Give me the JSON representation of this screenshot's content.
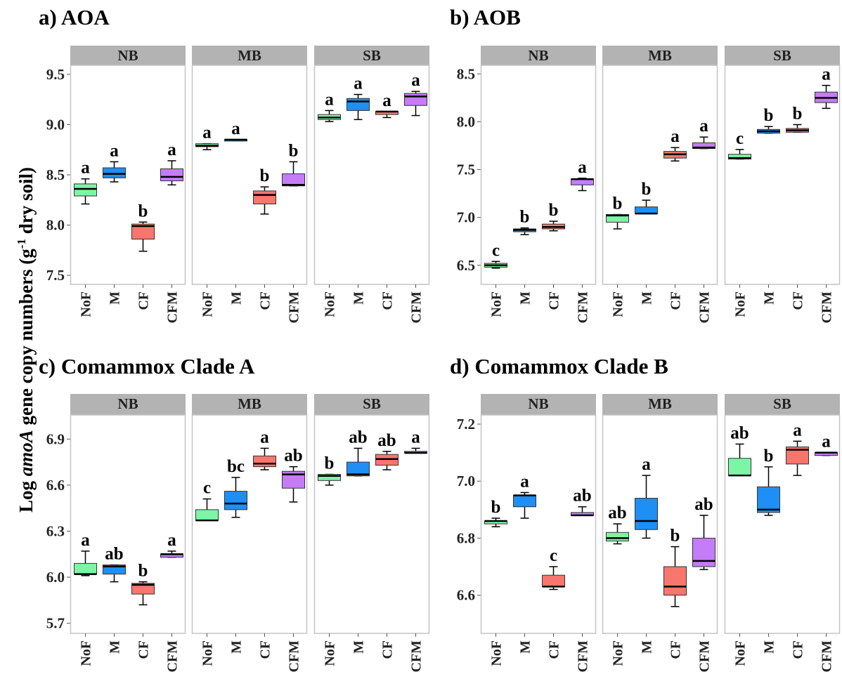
{
  "colors": {
    "NoF": "#7cf5a6",
    "M": "#1e8ff5",
    "CF": "#f8766d",
    "CFM": "#c47cf8",
    "strip": "#b3b3b3",
    "panel_border": "#c4c4c4"
  },
  "y_axis_label": {
    "pre": "Log ",
    "italic": "amoA",
    "mid": " gene copy numbers (g",
    "sup": "-1",
    "post": " dry soil)"
  },
  "chart_data": [
    {
      "type": "boxplot",
      "title": "a) AOA",
      "ylim": [
        7.41,
        9.59
      ],
      "yticks": [
        "7.5",
        "8.0",
        "8.5",
        "9.0",
        "9.5"
      ],
      "categories": [
        "NoF",
        "M",
        "CF",
        "CFM"
      ],
      "facets": [
        {
          "name": "NB",
          "boxes": [
            {
              "category": "NoF",
              "min": 8.21,
              "q1": 8.29,
              "median": 8.36,
              "q3": 8.41,
              "max": 8.46,
              "letter": "a"
            },
            {
              "category": "M",
              "min": 8.43,
              "q1": 8.47,
              "median": 8.51,
              "q3": 8.57,
              "max": 8.63,
              "letter": "a"
            },
            {
              "category": "CF",
              "min": 7.74,
              "q1": 7.86,
              "median": 7.99,
              "q3": 8.01,
              "max": 8.03,
              "letter": "b"
            },
            {
              "category": "CFM",
              "min": 8.4,
              "q1": 8.44,
              "median": 8.48,
              "q3": 8.56,
              "max": 8.64,
              "letter": "a"
            }
          ]
        },
        {
          "name": "MB",
          "boxes": [
            {
              "category": "NoF",
              "min": 8.75,
              "q1": 8.78,
              "median": 8.79,
              "q3": 8.81,
              "max": 8.81,
              "letter": "a"
            },
            {
              "category": "M",
              "min": 8.84,
              "q1": 8.84,
              "median": 8.85,
              "q3": 8.85,
              "max": 8.85,
              "letter": "a"
            },
            {
              "category": "CF",
              "min": 8.11,
              "q1": 8.21,
              "median": 8.3,
              "q3": 8.34,
              "max": 8.38,
              "letter": "b"
            },
            {
              "category": "CFM",
              "min": 8.39,
              "q1": 8.39,
              "median": 8.4,
              "q3": 8.51,
              "max": 8.63,
              "letter": "b"
            }
          ]
        },
        {
          "name": "SB",
          "boxes": [
            {
              "category": "NoF",
              "min": 9.03,
              "q1": 9.05,
              "median": 9.07,
              "q3": 9.1,
              "max": 9.14,
              "letter": "a"
            },
            {
              "category": "M",
              "min": 9.05,
              "q1": 9.14,
              "median": 9.23,
              "q3": 9.26,
              "max": 9.3,
              "letter": "a"
            },
            {
              "category": "CF",
              "min": 9.07,
              "q1": 9.1,
              "median": 9.13,
              "q3": 9.13,
              "max": 9.13,
              "letter": "a"
            },
            {
              "category": "CFM",
              "min": 9.09,
              "q1": 9.19,
              "median": 9.28,
              "q3": 9.31,
              "max": 9.33,
              "letter": "a"
            }
          ]
        }
      ]
    },
    {
      "type": "boxplot",
      "title": "b) AOB",
      "ylim": [
        6.3,
        8.59
      ],
      "yticks": [
        "6.5",
        "7.0",
        "7.5",
        "8.0",
        "8.5"
      ],
      "categories": [
        "NoF",
        "M",
        "CF",
        "CFM"
      ],
      "facets": [
        {
          "name": "NB",
          "boxes": [
            {
              "category": "NoF",
              "min": 6.47,
              "q1": 6.48,
              "median": 6.5,
              "q3": 6.52,
              "max": 6.54,
              "letter": "c"
            },
            {
              "category": "M",
              "min": 6.82,
              "q1": 6.85,
              "median": 6.87,
              "q3": 6.88,
              "max": 6.89,
              "letter": "b"
            },
            {
              "category": "CF",
              "min": 6.86,
              "q1": 6.88,
              "median": 6.9,
              "q3": 6.93,
              "max": 6.96,
              "letter": "b"
            },
            {
              "category": "CFM",
              "min": 7.28,
              "q1": 7.34,
              "median": 7.4,
              "q3": 7.4,
              "max": 7.41,
              "letter": "a"
            }
          ]
        },
        {
          "name": "MB",
          "boxes": [
            {
              "category": "NoF",
              "min": 6.88,
              "q1": 6.95,
              "median": 7.02,
              "q3": 7.03,
              "max": 7.03,
              "letter": "b"
            },
            {
              "category": "M",
              "min": 7.04,
              "q1": 7.04,
              "median": 7.04,
              "q3": 7.11,
              "max": 7.18,
              "letter": "b"
            },
            {
              "category": "CF",
              "min": 7.59,
              "q1": 7.62,
              "median": 7.66,
              "q3": 7.69,
              "max": 7.73,
              "letter": "a"
            },
            {
              "category": "CFM",
              "min": 7.72,
              "q1": 7.72,
              "median": 7.73,
              "q3": 7.78,
              "max": 7.84,
              "letter": "a"
            }
          ]
        },
        {
          "name": "SB",
          "boxes": [
            {
              "category": "NoF",
              "min": 7.61,
              "q1": 7.61,
              "median": 7.62,
              "q3": 7.66,
              "max": 7.71,
              "letter": "c"
            },
            {
              "category": "M",
              "min": 7.88,
              "q1": 7.88,
              "median": 7.9,
              "q3": 7.92,
              "max": 7.95,
              "letter": "b"
            },
            {
              "category": "CF",
              "min": 7.89,
              "q1": 7.89,
              "median": 7.91,
              "q3": 7.93,
              "max": 7.97,
              "letter": "b"
            },
            {
              "category": "CFM",
              "min": 8.14,
              "q1": 8.2,
              "median": 8.25,
              "q3": 8.31,
              "max": 8.38,
              "letter": "a"
            }
          ]
        }
      ]
    },
    {
      "type": "boxplot",
      "title": "c) Comammox Clade A",
      "ylim": [
        5.634,
        7.057
      ],
      "yticks": [
        "5.7",
        "6.0",
        "6.3",
        "6.6",
        "6.9"
      ],
      "categories": [
        "NoF",
        "M",
        "CF",
        "CFM"
      ],
      "facets": [
        {
          "name": "NB",
          "boxes": [
            {
              "category": "NoF",
              "min": 6.01,
              "q1": 6.02,
              "median": 6.02,
              "q3": 6.09,
              "max": 6.17,
              "letter": "a"
            },
            {
              "category": "M",
              "min": 5.97,
              "q1": 6.02,
              "median": 6.07,
              "q3": 6.08,
              "max": 6.08,
              "letter": "ab"
            },
            {
              "category": "CF",
              "min": 5.82,
              "q1": 5.89,
              "median": 5.95,
              "q3": 5.96,
              "max": 5.97,
              "letter": "b"
            },
            {
              "category": "CFM",
              "min": 6.13,
              "q1": 6.13,
              "median": 6.15,
              "q3": 6.15,
              "max": 6.17,
              "letter": "a"
            }
          ]
        },
        {
          "name": "MB",
          "boxes": [
            {
              "category": "NoF",
              "min": 6.37,
              "q1": 6.37,
              "median": 6.37,
              "q3": 6.44,
              "max": 6.51,
              "letter": "c"
            },
            {
              "category": "M",
              "min": 6.39,
              "q1": 6.44,
              "median": 6.48,
              "q3": 6.56,
              "max": 6.65,
              "letter": "bc"
            },
            {
              "category": "CF",
              "min": 6.7,
              "q1": 6.72,
              "median": 6.74,
              "q3": 6.79,
              "max": 6.84,
              "letter": "a"
            },
            {
              "category": "CFM",
              "min": 6.49,
              "q1": 6.58,
              "median": 6.67,
              "q3": 6.69,
              "max": 6.72,
              "letter": "ab"
            }
          ]
        },
        {
          "name": "SB",
          "boxes": [
            {
              "category": "NoF",
              "min": 6.6,
              "q1": 6.63,
              "median": 6.66,
              "q3": 6.67,
              "max": 6.67,
              "letter": "b"
            },
            {
              "category": "M",
              "min": 6.66,
              "q1": 6.66,
              "median": 6.67,
              "q3": 6.75,
              "max": 6.84,
              "letter": "ab"
            },
            {
              "category": "CF",
              "min": 6.7,
              "q1": 6.73,
              "median": 6.77,
              "q3": 6.8,
              "max": 6.82,
              "letter": "ab"
            },
            {
              "category": "CFM",
              "min": 6.81,
              "q1": 6.81,
              "median": 6.81,
              "q3": 6.82,
              "max": 6.84,
              "letter": "a"
            }
          ]
        }
      ]
    },
    {
      "type": "boxplot",
      "title": "d) Comammox Clade B",
      "ylim": [
        6.466,
        7.232
      ],
      "yticks": [
        "6.6",
        "6.8",
        "7.0",
        "7.2"
      ],
      "categories": [
        "NoF",
        "M",
        "CF",
        "CFM"
      ],
      "facets": [
        {
          "name": "NB",
          "boxes": [
            {
              "category": "NoF",
              "min": 6.84,
              "q1": 6.85,
              "median": 6.86,
              "q3": 6.86,
              "max": 6.87,
              "letter": "b"
            },
            {
              "category": "M",
              "min": 6.87,
              "q1": 6.91,
              "median": 6.95,
              "q3": 6.95,
              "max": 6.96,
              "letter": "a"
            },
            {
              "category": "CF",
              "min": 6.62,
              "q1": 6.63,
              "median": 6.63,
              "q3": 6.67,
              "max": 6.7,
              "letter": "c"
            },
            {
              "category": "CFM",
              "min": 6.88,
              "q1": 6.88,
              "median": 6.88,
              "q3": 6.89,
              "max": 6.91,
              "letter": "ab"
            }
          ]
        },
        {
          "name": "MB",
          "boxes": [
            {
              "category": "NoF",
              "min": 6.78,
              "q1": 6.79,
              "median": 6.8,
              "q3": 6.82,
              "max": 6.85,
              "letter": "ab"
            },
            {
              "category": "M",
              "min": 6.8,
              "q1": 6.83,
              "median": 6.86,
              "q3": 6.94,
              "max": 7.02,
              "letter": "a"
            },
            {
              "category": "CF",
              "min": 6.56,
              "q1": 6.6,
              "median": 6.63,
              "q3": 6.7,
              "max": 6.77,
              "letter": "b"
            },
            {
              "category": "CFM",
              "min": 6.69,
              "q1": 6.7,
              "median": 6.72,
              "q3": 6.8,
              "max": 6.88,
              "letter": "ab"
            }
          ]
        },
        {
          "name": "SB",
          "boxes": [
            {
              "category": "NoF",
              "min": 7.02,
              "q1": 7.02,
              "median": 7.02,
              "q3": 7.08,
              "max": 7.13,
              "letter": "ab"
            },
            {
              "category": "M",
              "min": 6.88,
              "q1": 6.89,
              "median": 6.9,
              "q3": 6.98,
              "max": 7.05,
              "letter": "b"
            },
            {
              "category": "CF",
              "min": 7.02,
              "q1": 7.06,
              "median": 7.11,
              "q3": 7.12,
              "max": 7.14,
              "letter": "a"
            },
            {
              "category": "CFM",
              "min": 7.09,
              "q1": 7.09,
              "median": 7.1,
              "q3": 7.1,
              "max": 7.1,
              "letter": "a"
            }
          ]
        }
      ]
    }
  ]
}
